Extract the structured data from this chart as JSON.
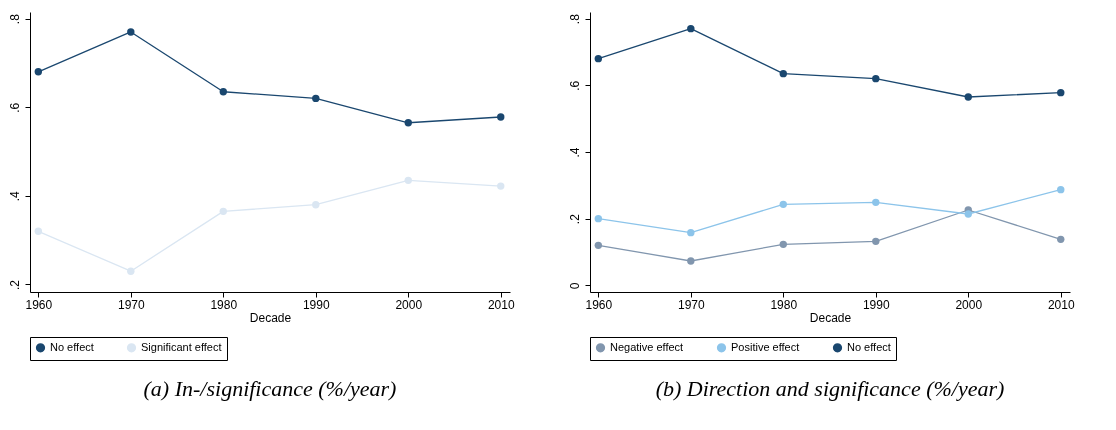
{
  "chart_data": [
    {
      "type": "line",
      "title": "(a) In-/significance (%/year)",
      "xlabel": "Decade",
      "x": [
        1960,
        1970,
        1980,
        1990,
        2000,
        2010
      ],
      "xlim": [
        1959.1,
        2011
      ],
      "xticks": [
        1960,
        1970,
        1980,
        1990,
        2000,
        2010
      ],
      "ylim": [
        0.183,
        0.815
      ],
      "yticks": [
        {
          "value": 0.2,
          "label": ".2"
        },
        {
          "value": 0.4,
          "label": ".4"
        },
        {
          "value": 0.6,
          "label": ".6"
        },
        {
          "value": 0.8,
          "label": ".8"
        }
      ],
      "grid": false,
      "legend": "bottom",
      "marker": "circle",
      "line_style": "solid",
      "series": [
        {
          "name": "No effect",
          "color": "#1a476f",
          "values": [
            0.68,
            0.77,
            0.635,
            0.62,
            0.565,
            0.578
          ]
        },
        {
          "name": "Significant effect",
          "color": "#dae6f2",
          "values": [
            0.32,
            0.23,
            0.365,
            0.38,
            0.435,
            0.422
          ]
        }
      ]
    },
    {
      "type": "line",
      "title": "(b) Direction and significance (%/year)",
      "xlabel": "Decade",
      "x": [
        1960,
        1970,
        1980,
        1990,
        2000,
        2010
      ],
      "xlim": [
        1959.1,
        2011
      ],
      "xticks": [
        1960,
        1970,
        1980,
        1990,
        2000,
        2010
      ],
      "ylim": [
        -0.02,
        0.82
      ],
      "yticks": [
        0,
        {
          "value": 0.2,
          "label": ".2"
        },
        {
          "value": 0.4,
          "label": ".4"
        },
        {
          "value": 0.6,
          "label": ".6"
        },
        {
          "value": 0.8,
          "label": ".8"
        }
      ],
      "grid": false,
      "legend": "bottom",
      "marker": "circle",
      "line_style": "solid",
      "series": [
        {
          "name": "Negative effect",
          "color": "#8196ae",
          "values": [
            0.12,
            0.073,
            0.123,
            0.132,
            0.226,
            0.138
          ]
        },
        {
          "name": "Positive effect",
          "color": "#8cc4ea",
          "values": [
            0.2,
            0.158,
            0.243,
            0.249,
            0.214,
            0.287
          ]
        },
        {
          "name": "No effect",
          "color": "#1a476f",
          "values": [
            0.68,
            0.77,
            0.635,
            0.62,
            0.565,
            0.578
          ]
        }
      ]
    }
  ]
}
